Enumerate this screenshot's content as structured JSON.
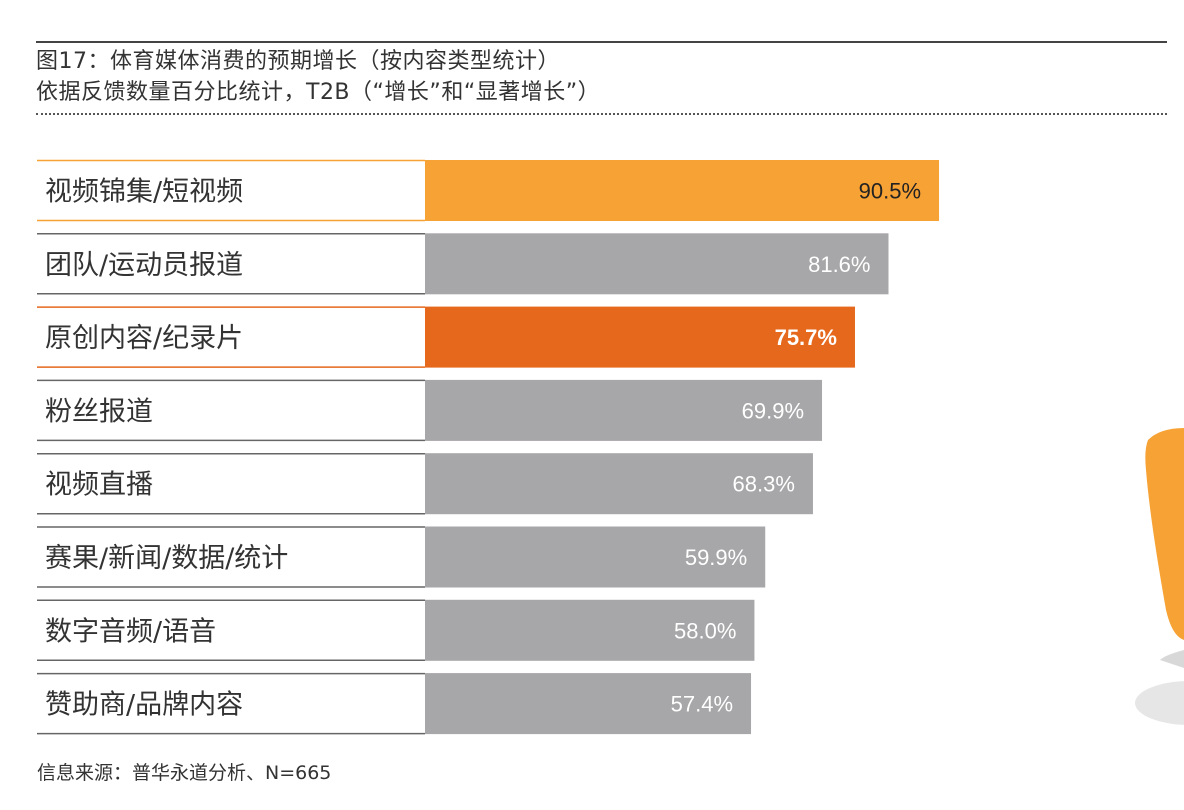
{
  "header": {
    "title": "图17：体育媒体消费的预期增长（按内容类型统计）",
    "subtitle": "依据反馈数量百分比统计，T2B（“增长”和“显著增长”）"
  },
  "footer": {
    "source": "信息来源：普华永道分析、N=665"
  },
  "colors": {
    "light_orange": "#F7A234",
    "dark_orange": "#E5681C",
    "gray": "#A7A6A8",
    "text_dark": "#333333",
    "label_white": "#FFFFFF"
  },
  "chart_data": {
    "type": "bar",
    "orientation": "horizontal",
    "categories": [
      "视频锦集/短视频",
      "团队/运动员报道",
      "原创内容/纪录片",
      "粉丝报道",
      "视频直播",
      "赛果/新闻/数据/统计",
      "数字音频/语音",
      "赞助商/品牌内容"
    ],
    "values": [
      90.5,
      81.6,
      75.7,
      69.9,
      68.3,
      59.9,
      58.0,
      57.4
    ],
    "value_labels": [
      "90.5%",
      "81.6%",
      "75.7%",
      "69.9%",
      "68.3%",
      "59.9%",
      "58.0%",
      "57.4%"
    ],
    "highlight": [
      "light",
      "none",
      "dark",
      "none",
      "none",
      "none",
      "none",
      "none"
    ],
    "xlim": [
      0,
      100
    ],
    "grid": false,
    "legend": "none"
  }
}
